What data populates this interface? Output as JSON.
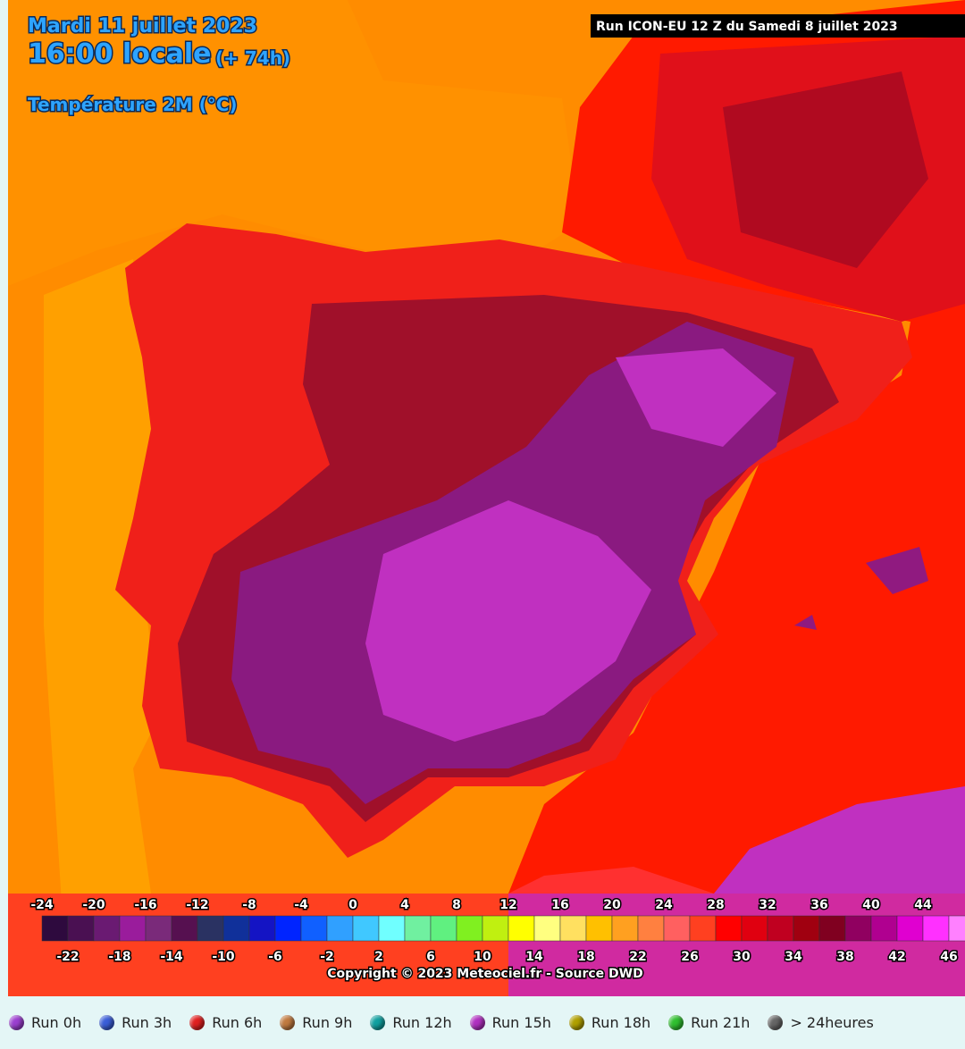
{
  "header": {
    "date": "Mardi 11 juillet 2023",
    "time": "16:00 locale",
    "lead": "(+ 74h)",
    "variable": "Température 2M (°C)",
    "run_info": "Run ICON-EU 12 Z du Samedi 8 juillet 2023"
  },
  "colorbar": {
    "top_labels": [
      -24,
      -20,
      -16,
      -12,
      -8,
      -4,
      0,
      4,
      8,
      12,
      16,
      20,
      24,
      28,
      32,
      36,
      40,
      44
    ],
    "bottom_labels": [
      -22,
      -18,
      -14,
      -10,
      -6,
      -2,
      2,
      6,
      10,
      14,
      18,
      22,
      26,
      30,
      34,
      38,
      42,
      46
    ],
    "colors": [
      "#2e0a3e",
      "#4a1052",
      "#6a1a72",
      "#9a1c9c",
      "#7a2a7a",
      "#561050",
      "#2a3262",
      "#10309a",
      "#1414c4",
      "#0024ff",
      "#1060ff",
      "#30a0ff",
      "#40c8ff",
      "#70ffff",
      "#70f0a0",
      "#60f080",
      "#80f020",
      "#c0f010",
      "#ffff00",
      "#ffff80",
      "#ffe060",
      "#ffc000",
      "#ffa020",
      "#ff8040",
      "#ff6060",
      "#ff4020",
      "#ff0000",
      "#e00010",
      "#c00020",
      "#a00010",
      "#800020",
      "#900060",
      "#b00090",
      "#e000d0",
      "#ff30ff",
      "#ff80ff"
    ]
  },
  "copyright": "Copyright © 2023 Meteociel.fr - Source DWD",
  "runs": [
    {
      "label": "Run 0h",
      "color": "#9b3fd0"
    },
    {
      "label": "Run 3h",
      "color": "#3a5ed8"
    },
    {
      "label": "Run 6h",
      "color": "#e02020"
    },
    {
      "label": "Run 9h",
      "color": "#c07a40"
    },
    {
      "label": "Run 12h",
      "color": "#10a0a0"
    },
    {
      "label": "Run 15h",
      "color": "#b030c0"
    },
    {
      "label": "Run 18h",
      "color": "#b0a000"
    },
    {
      "label": "Run 21h",
      "color": "#30c030"
    },
    {
      "label": "> 24heures",
      "color": "#666666"
    }
  ]
}
